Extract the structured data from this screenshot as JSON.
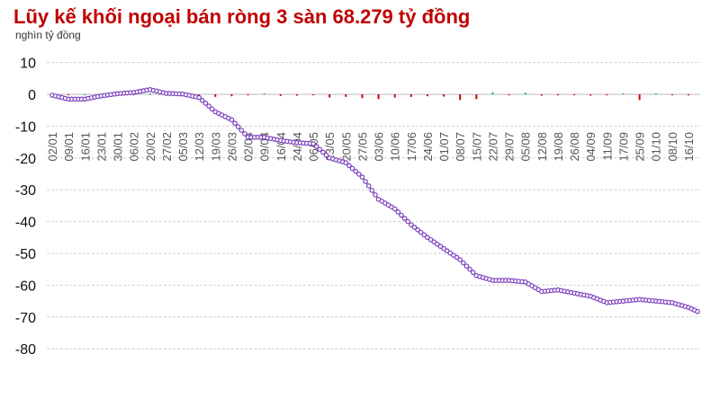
{
  "chart_data": {
    "type": "line",
    "title": "Lũy kế khối ngoại bán ròng 3 sàn 68.279 tỷ đồng",
    "ylabel": "nghìn tỷ đồng",
    "xlabel": "",
    "ylim": [
      -80,
      10
    ],
    "yticks": [
      10,
      0,
      -10,
      -20,
      -30,
      -40,
      -50,
      -60,
      -70,
      -80
    ],
    "grid": true,
    "legend": "none",
    "categories": [
      "02/01",
      "09/01",
      "16/01",
      "23/01",
      "30/01",
      "06/02",
      "20/02",
      "27/02",
      "05/03",
      "12/03",
      "19/03",
      "26/03",
      "02/04",
      "09/04",
      "16/04",
      "24/04",
      "06/05",
      "13/05",
      "20/05",
      "27/05",
      "03/06",
      "10/06",
      "17/06",
      "24/06",
      "01/07",
      "08/07",
      "15/07",
      "22/07",
      "29/07",
      "05/08",
      "12/08",
      "19/08",
      "26/08",
      "04/09",
      "11/09",
      "17/09",
      "25/09",
      "01/10",
      "08/10",
      "16/10"
    ],
    "series": [
      {
        "values": [
          -0.3,
          -1.5,
          -1.5,
          -0.5,
          0.2,
          0.6,
          1.5,
          0.3,
          0.1,
          -1,
          -5.5,
          -8,
          -13.5,
          -13.5,
          -14.5,
          -15.2,
          -15.5,
          -20,
          -21.5,
          -26,
          -33,
          -36,
          -41,
          -45,
          -48.5,
          -52,
          -57,
          -58.5,
          -58.5,
          -59,
          -62,
          -61.5,
          -62.5,
          -63.5,
          -65.5,
          -65,
          -64.5,
          -65,
          -65.5,
          -67
        ]
      },
      {
        "values": [
          0,
          -0.2,
          0,
          0.2,
          0.1,
          -0.2,
          0.3,
          -0.5,
          -0.3,
          -0.5,
          -0.8,
          -0.6,
          -0.3,
          0.3,
          -0.5,
          -0.4,
          -0.3,
          -1,
          -0.8,
          -1.2,
          -1.5,
          -1,
          -0.8,
          -0.6,
          -0.7,
          -1.8,
          -1.5,
          0.6,
          -0.3,
          0.5,
          -0.4,
          -0.3,
          -0.3,
          -0.4,
          -0.3,
          0.3,
          -1.8,
          0.3,
          -0.3,
          -0.3
        ]
      }
    ],
    "last_value": -68.279,
    "colors": {
      "line": "#7b3fbf",
      "connector": "#222222",
      "sell_bar": "#cc0000",
      "buy_bar": "#00b050",
      "title": "#c00000"
    }
  }
}
